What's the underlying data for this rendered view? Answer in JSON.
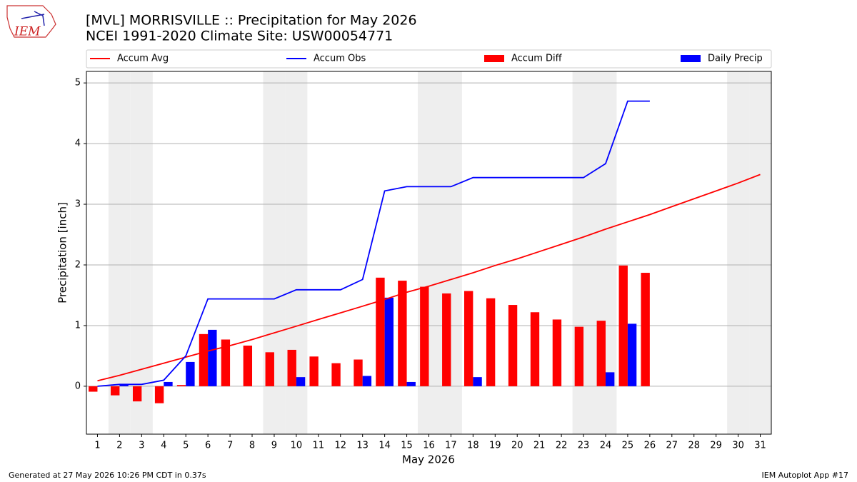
{
  "chart_data": {
    "type": "bar",
    "title": "[MVL] MORRISVILLE :: Precipitation for May 2026",
    "subtitle": "NCEI 1991-2020 Climate Site: USW00054771",
    "logo_text": "IEM",
    "xlabel": "May 2026",
    "ylabel": "Precipitation [inch]",
    "footer_left": "Generated at 27 May 2026 10:26 PM CDT in 0.37s",
    "footer_right": "IEM Autoplot App #17",
    "x": [
      1,
      2,
      3,
      4,
      5,
      6,
      7,
      8,
      9,
      10,
      11,
      12,
      13,
      14,
      15,
      16,
      17,
      18,
      19,
      20,
      21,
      22,
      23,
      24,
      25,
      26,
      27,
      28,
      29,
      30,
      31
    ],
    "xlim": [
      0.5,
      31.5
    ],
    "xticks": [
      1,
      2,
      3,
      4,
      5,
      6,
      7,
      8,
      9,
      10,
      11,
      12,
      13,
      14,
      15,
      16,
      17,
      18,
      19,
      20,
      21,
      22,
      23,
      24,
      25,
      26,
      27,
      28,
      29,
      30,
      31
    ],
    "ylim": [
      -0.79,
      5.19
    ],
    "yticks": [
      0,
      1,
      2,
      3,
      4,
      5
    ],
    "grid": true,
    "weekend_days": [
      2,
      3,
      9,
      10,
      16,
      17,
      23,
      24,
      30,
      31
    ],
    "legend": "top",
    "series": [
      {
        "name": "Accum Avg",
        "type": "line",
        "color": "#ff0000",
        "values": [
          0.09,
          0.18,
          0.28,
          0.38,
          0.48,
          0.58,
          0.67,
          0.77,
          0.88,
          0.99,
          1.1,
          1.21,
          1.32,
          1.43,
          1.55,
          1.65,
          1.76,
          1.87,
          1.99,
          2.1,
          2.22,
          2.34,
          2.46,
          2.59,
          2.71,
          2.83,
          2.96,
          3.09,
          3.22,
          3.35,
          3.49
        ]
      },
      {
        "name": "Accum Obs",
        "type": "line",
        "color": "#0000ff",
        "values": [
          0,
          0.03,
          0.03,
          0.1,
          0.5,
          1.44,
          1.44,
          1.44,
          1.44,
          1.59,
          1.59,
          1.59,
          1.76,
          3.22,
          3.29,
          3.29,
          3.29,
          3.44,
          3.44,
          3.44,
          3.44,
          3.44,
          3.44,
          3.67,
          4.7,
          4.7,
          null,
          null,
          null,
          null,
          null
        ]
      },
      {
        "name": "Accum Diff",
        "type": "bar",
        "color": "#ff0000",
        "values": [
          -0.09,
          -0.15,
          -0.25,
          -0.28,
          0.02,
          0.86,
          0.77,
          0.67,
          0.56,
          0.6,
          0.49,
          0.38,
          0.44,
          1.79,
          1.74,
          1.64,
          1.53,
          1.57,
          1.45,
          1.34,
          1.22,
          1.1,
          0.98,
          1.08,
          1.99,
          1.87,
          null,
          null,
          null,
          null,
          null
        ]
      },
      {
        "name": "Daily Precip",
        "type": "bar",
        "color": "#0000ff",
        "values": [
          0,
          0.03,
          0,
          0.07,
          0.4,
          0.93,
          0,
          0,
          0,
          0.15,
          0,
          0,
          0.17,
          1.46,
          0.07,
          0,
          0,
          0.15,
          0,
          0,
          0,
          0,
          0,
          0.23,
          1.03,
          0,
          null,
          null,
          null,
          null,
          null
        ]
      }
    ]
  }
}
